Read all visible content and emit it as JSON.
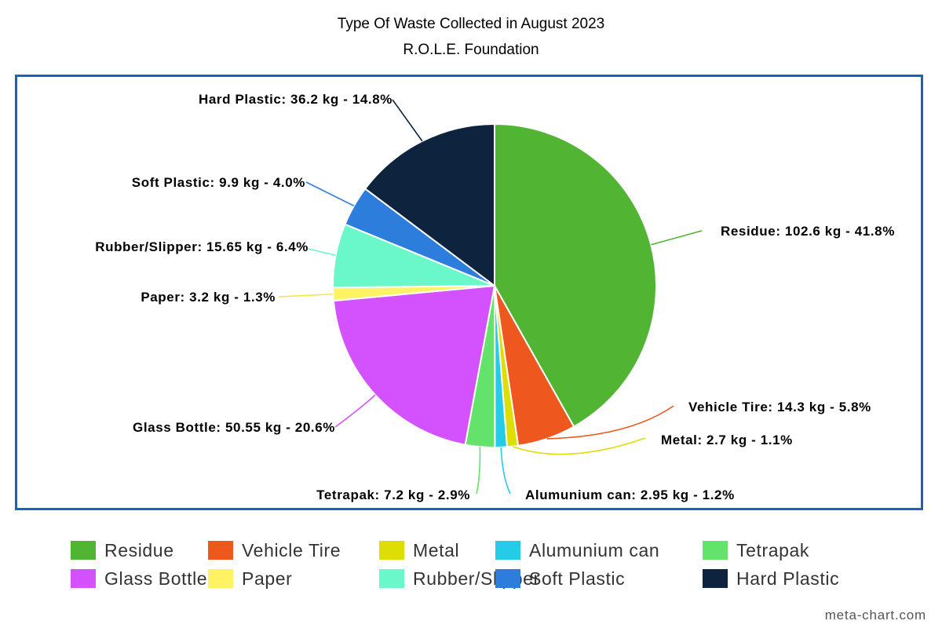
{
  "chart_data": {
    "type": "pie",
    "title": "Type Of Waste Collected in August 2023",
    "subtitle": "R.O.L.E. Foundation",
    "unit": "kg",
    "legend_position": "bottom",
    "slices": [
      {
        "name": "Residue",
        "value": 102.6,
        "percent": "41.8%",
        "color": "#51b432",
        "label": "Residue: 102.6 kg - 41.8%"
      },
      {
        "name": "Vehicle Tire",
        "value": 14.3,
        "percent": "5.8%",
        "color": "#ee571e",
        "label": "Vehicle Tire: 14.3 kg - 5.8%"
      },
      {
        "name": "Metal",
        "value": 2.7,
        "percent": "1.1%",
        "color": "#dede04",
        "label": "Metal: 2.7 kg - 1.1%"
      },
      {
        "name": "Alumunium can",
        "value": 2.95,
        "percent": "1.2%",
        "color": "#25cce8",
        "label": "Alumunium can: 2.95 kg - 1.2%"
      },
      {
        "name": "Tetrapak",
        "value": 7.2,
        "percent": "2.9%",
        "color": "#63e26c",
        "label": "Tetrapak: 7.2 kg - 2.9%"
      },
      {
        "name": "Glass Bottle",
        "value": 50.55,
        "percent": "20.6%",
        "color": "#d452fe",
        "label": "Glass Bottle: 50.55 kg - 20.6%"
      },
      {
        "name": "Paper",
        "value": 3.2,
        "percent": "1.3%",
        "color": "#fff263",
        "label": "Paper: 3.2 kg - 1.3%"
      },
      {
        "name": "Rubber/Slipper",
        "value": 15.65,
        "percent": "6.4%",
        "color": "#6af7c9",
        "label": "Rubber/Slipper: 15.65 kg - 6.4%"
      },
      {
        "name": "Soft Plastic",
        "value": 9.9,
        "percent": "4.0%",
        "color": "#2d7edc",
        "label": "Soft Plastic: 9.9 kg - 4.0%"
      },
      {
        "name": "Hard Plastic",
        "value": 36.2,
        "percent": "14.8%",
        "color": "#0e233d",
        "label": "Hard Plastic: 36.2 kg - 14.8%"
      }
    ]
  },
  "watermark": "meta-chart.com",
  "colors": {
    "frame_border": "#1565c0",
    "slice_border": "#ffffff"
  }
}
